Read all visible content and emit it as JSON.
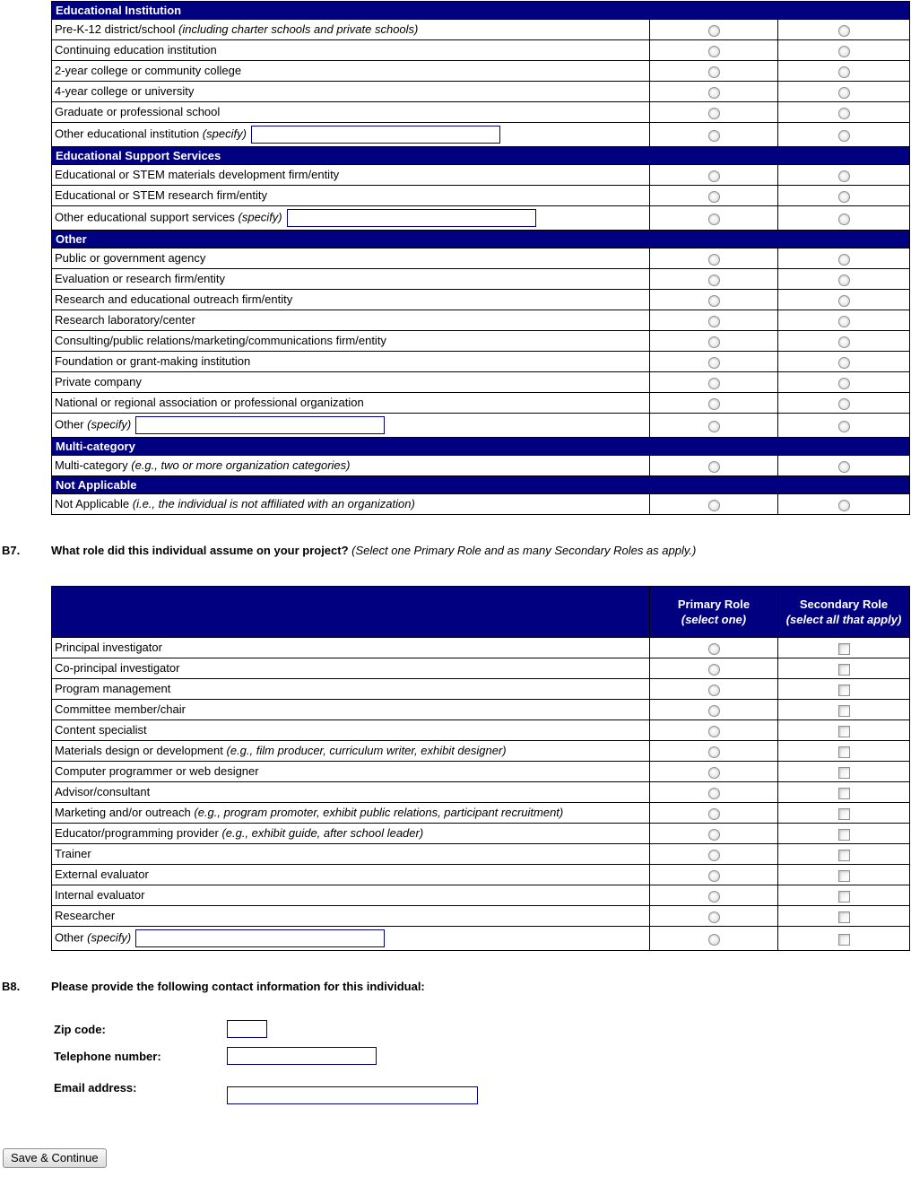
{
  "colors": {
    "section_header_bg": "#000080",
    "section_header_text": "#ffffff",
    "input_border": "#000080",
    "grid_border": "#000000"
  },
  "org_table": {
    "option_columns": 2,
    "sections": [
      {
        "header": "Educational Institution",
        "rows": [
          {
            "label": "Pre-K-12 district/school",
            "note": "(including charter schools and private schools)"
          },
          {
            "label": "Continuing education institution"
          },
          {
            "label": "2-year college or community college"
          },
          {
            "label": "4-year college or university"
          },
          {
            "label": "Graduate or professional school"
          },
          {
            "label": "Other educational institution",
            "note": "(specify)",
            "has_input": true,
            "input_value": ""
          }
        ]
      },
      {
        "header": "Educational Support Services",
        "rows": [
          {
            "label": "Educational or STEM materials development firm/entity"
          },
          {
            "label": "Educational or STEM research firm/entity"
          },
          {
            "label": "Other educational support services",
            "note": "(specify)",
            "has_input": true,
            "input_value": ""
          }
        ]
      },
      {
        "header": "Other",
        "rows": [
          {
            "label": "Public or government agency"
          },
          {
            "label": "Evaluation or research firm/entity"
          },
          {
            "label": "Research and educational outreach firm/entity"
          },
          {
            "label": "Research laboratory/center"
          },
          {
            "label": "Consulting/public relations/marketing/communications firm/entity"
          },
          {
            "label": "Foundation or grant-making institution"
          },
          {
            "label": "Private company"
          },
          {
            "label": "National or regional association or professional organization"
          },
          {
            "label": "Other",
            "note": "(specify)",
            "has_input": true,
            "input_value": ""
          }
        ]
      },
      {
        "header": "Multi-category",
        "rows": [
          {
            "label": "Multi-category",
            "note": "(e.g., two or more organization categories)"
          }
        ]
      },
      {
        "header": "Not Applicable",
        "rows": [
          {
            "label": "Not Applicable",
            "note": "(i.e., the individual is not affiliated with an organization)"
          }
        ]
      }
    ]
  },
  "q_b7": {
    "number": "B7.",
    "question": "What role did this individual assume on your project?",
    "note": "(Select one Primary Role and as many Secondary Roles as apply.)",
    "table": {
      "col_primary": {
        "title": "Primary Role",
        "sub": "(select one)"
      },
      "col_secondary": {
        "title": "Secondary Role",
        "sub": "(select all that apply)"
      },
      "rows": [
        {
          "label": "Principal investigator"
        },
        {
          "label": "Co-principal investigator"
        },
        {
          "label": "Program management"
        },
        {
          "label": "Committee member/chair"
        },
        {
          "label": "Content specialist"
        },
        {
          "label": "Materials design or development",
          "note": "(e.g., film producer, curriculum writer, exhibit designer)"
        },
        {
          "label": "Computer programmer or web designer"
        },
        {
          "label": "Advisor/consultant"
        },
        {
          "label": "Marketing and/or outreach",
          "note": "(e.g., program promoter, exhibit public relations, participant recruitment)"
        },
        {
          "label": "Educator/programming provider",
          "note": "(e.g., exhibit guide, after school leader)"
        },
        {
          "label": "Trainer"
        },
        {
          "label": "External evaluator"
        },
        {
          "label": "Internal evaluator"
        },
        {
          "label": "Researcher"
        },
        {
          "label": "Other",
          "note": "(specify)",
          "has_input": true,
          "input_value": ""
        }
      ]
    }
  },
  "q_b8": {
    "number": "B8.",
    "question": "Please provide the following contact information for this individual:",
    "fields": [
      {
        "label": "Zip code:",
        "value": "",
        "input_width": 45
      },
      {
        "label": "Telephone number:",
        "value": "",
        "input_width": 167
      },
      {
        "label": "Email address:",
        "value": "",
        "input_width": 280
      }
    ]
  },
  "save_button": "Save & Continue"
}
